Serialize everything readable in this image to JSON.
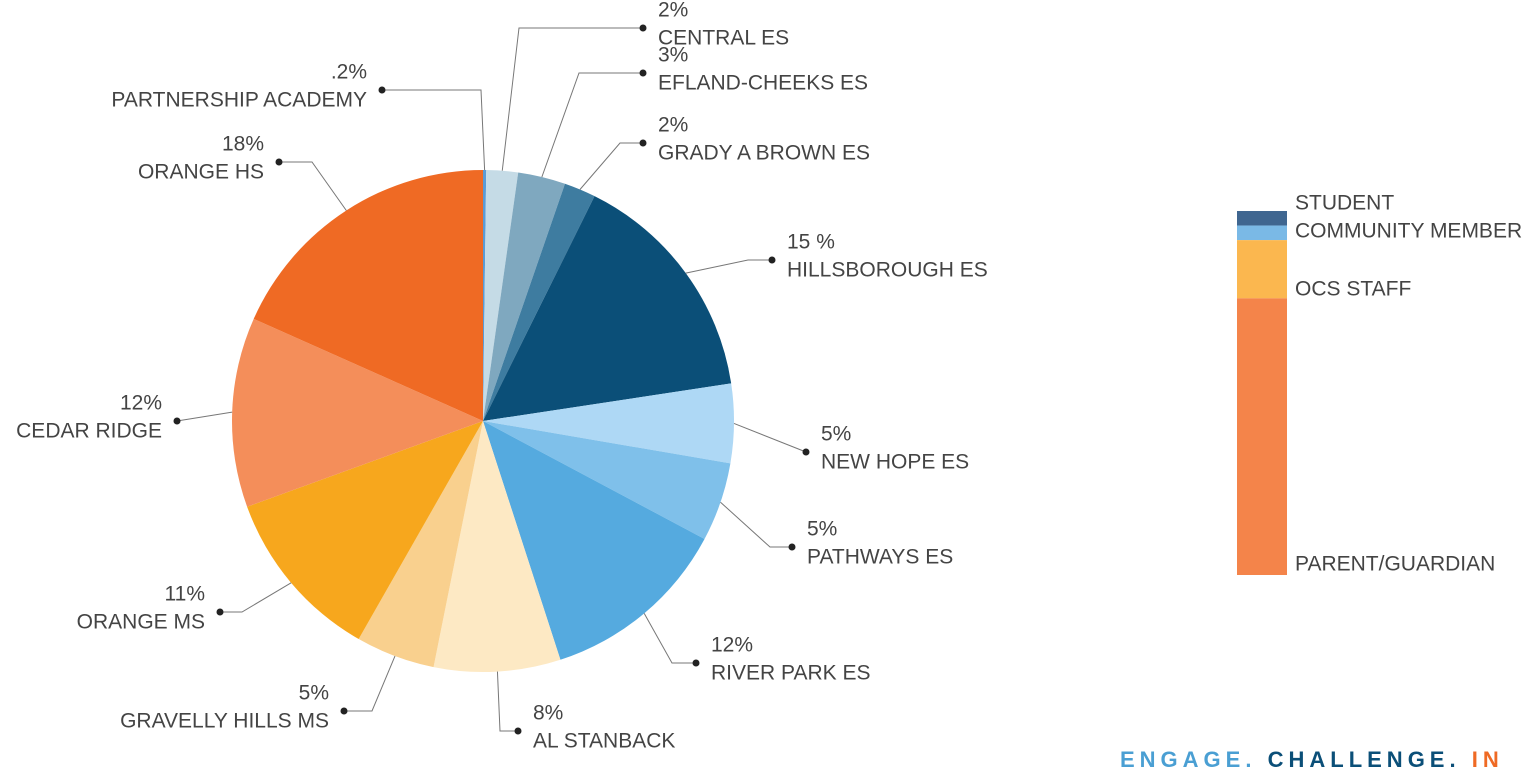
{
  "chart_data": [
    {
      "type": "pie",
      "categories": [
        "PARTNERSHIP ACADEMY",
        "CENTRAL ES",
        "EFLAND-CHEEKS ES",
        "GRADY A BROWN ES",
        "HILLSBOROUGH ES",
        "NEW HOPE ES",
        "PATHWAYS ES",
        "RIVER PARK ES",
        "AL STANBACK",
        "GRAVELLY HILLS MS",
        "ORANGE MS",
        "CEDAR RIDGE",
        "ORANGE HS"
      ],
      "values": [
        0.2,
        2,
        3,
        2,
        15,
        5,
        5,
        12,
        8,
        5,
        11,
        12,
        18
      ],
      "value_labels": [
        ".2%",
        "2%",
        "3%",
        "2%",
        "15 %",
        "5%",
        "5%",
        "12%",
        "8%",
        "5%",
        "11%",
        "12%",
        "18%"
      ],
      "colors": [
        "#5b9bd5",
        "#c5dbe6",
        "#7fa8bf",
        "#3e7ca0",
        "#0b4f78",
        "#aed8f5",
        "#7fc0ea",
        "#55aadf",
        "#fde9c4",
        "#f9d08e",
        "#f7a71d",
        "#f48e5a",
        "#ef6a24"
      ]
    },
    {
      "type": "stacked_bar",
      "categories": [
        "STUDENT",
        "COMMUNITY MEMBER",
        "OCS STAFF",
        "PARENT/GUARDIAN"
      ],
      "values": [
        4,
        4,
        16,
        76
      ],
      "colors": [
        "#3f6690",
        "#7ab9e6",
        "#fbb74f",
        "#f4844a"
      ]
    }
  ],
  "footer": [
    "ENGAGE.",
    "CHALLENGE.",
    "IN"
  ],
  "footer_colors": [
    "#4a9fd3",
    "#0b4f78",
    "#ef6a24"
  ]
}
